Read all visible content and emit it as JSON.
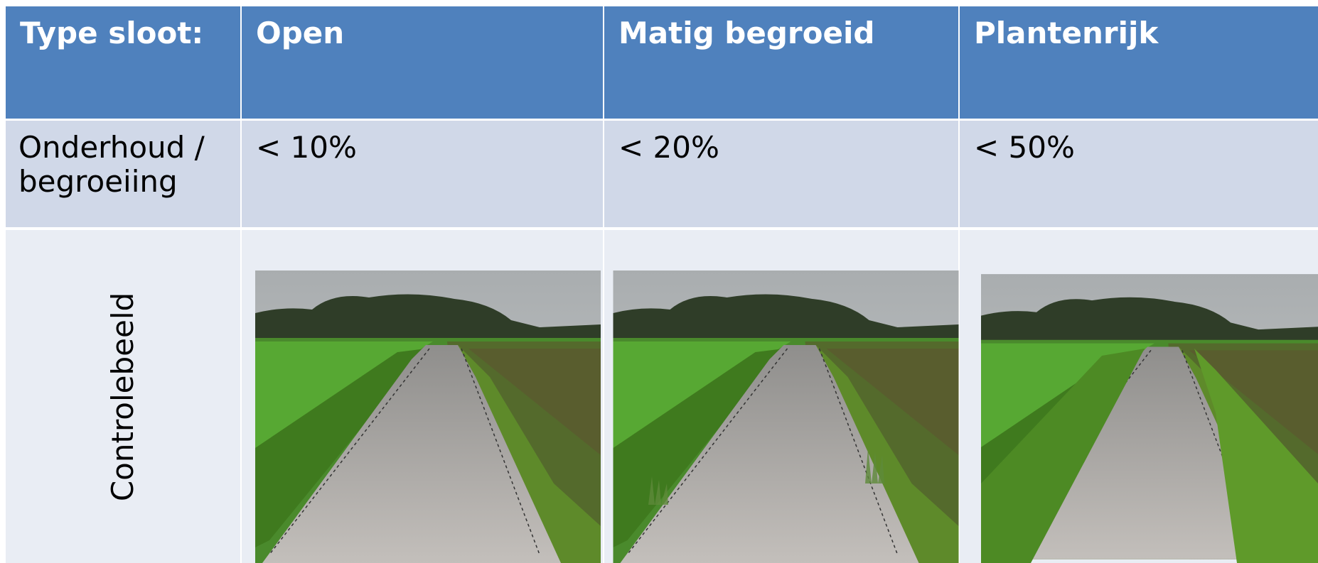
{
  "table": {
    "header": [
      "Type sloot:",
      "Open",
      "Matig begroeid",
      "Plantenrijk"
    ],
    "rows": [
      [
        "Onderhoud / begroeiing",
        "< 10%",
        "< 20%",
        "< 50%"
      ],
      [
        "Controlebeeld"
      ]
    ]
  }
}
